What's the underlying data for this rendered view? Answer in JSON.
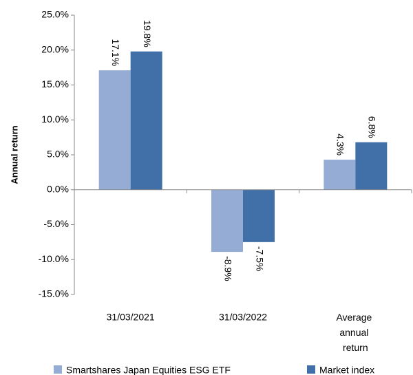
{
  "chart_data": {
    "type": "bar",
    "y_label": "Annual return",
    "categories": [
      "31/03/2021",
      "31/03/2022",
      "Average annual return"
    ],
    "series": [
      {
        "name": "Smartshares Japan Equities ESG ETF",
        "color": "#95acd5",
        "values": [
          17.1,
          -8.9,
          4.3
        ],
        "value_labels": [
          "17.1%",
          "-8.9%",
          "4.3%"
        ]
      },
      {
        "name": "Market index",
        "color": "#4170a8",
        "values": [
          19.8,
          -7.5,
          6.8
        ],
        "value_labels": [
          "19.8%",
          "-7.5%",
          "6.8%"
        ]
      }
    ],
    "ylim": [
      -15,
      25
    ],
    "yticks": [
      {
        "value": -15,
        "label": "-15.0%"
      },
      {
        "value": -10,
        "label": "-10.0%"
      },
      {
        "value": -5,
        "label": "-5.0%"
      },
      {
        "value": 0,
        "label": "0.0%"
      },
      {
        "value": 5,
        "label": "5.0%"
      },
      {
        "value": 10,
        "label": "10.0%"
      },
      {
        "value": 15,
        "label": "15.0%"
      },
      {
        "value": 20,
        "label": "20.0%"
      },
      {
        "value": 25,
        "label": "25.0%"
      }
    ],
    "grid": false
  }
}
